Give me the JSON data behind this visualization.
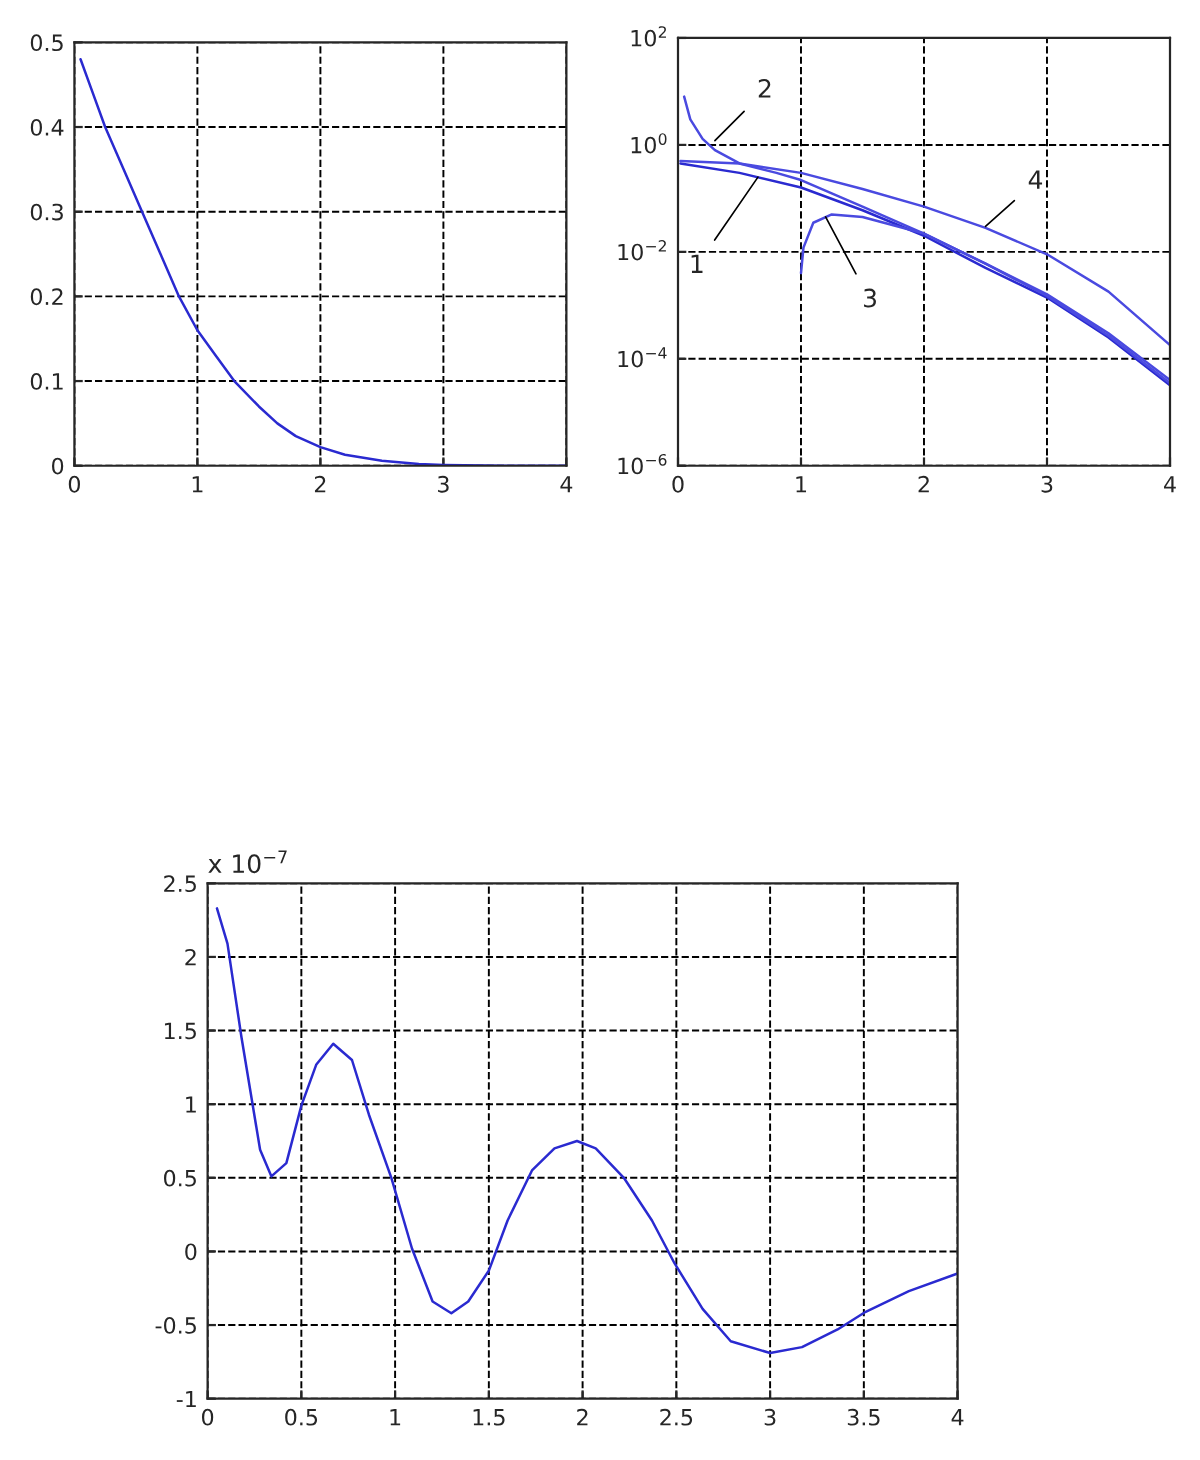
{
  "chart_data": [
    {
      "type": "line",
      "x": [
        0.05,
        0.15,
        0.25,
        0.4,
        0.55,
        0.7,
        0.85,
        1.0,
        1.15,
        1.3,
        1.5,
        1.65,
        1.8,
        2.0,
        2.2,
        2.5,
        2.8,
        3.0,
        3.5,
        4.0
      ],
      "series": [
        {
          "color": "#2a2ad0",
          "values": [
            0.48,
            0.44,
            0.4,
            0.35,
            0.3,
            0.25,
            0.2,
            0.16,
            0.13,
            0.1,
            0.07,
            0.05,
            0.035,
            0.022,
            0.013,
            0.006,
            0.002,
            0.001,
            0,
            0
          ]
        }
      ],
      "xlim": [
        0,
        4
      ],
      "ylim": [
        0,
        0.5
      ],
      "xticks": [
        0,
        1,
        2,
        3,
        4
      ],
      "yticks": [
        0,
        0.1,
        0.2,
        0.3,
        0.4,
        0.5
      ],
      "grid": true
    },
    {
      "type": "line",
      "log": "y",
      "series": [
        {
          "color": "#2a2ad0",
          "x": [
            0.02,
            0.5,
            1.0,
            1.5,
            2.0,
            2.5,
            3.0,
            3.5,
            4.0
          ],
          "values": [
            0.45,
            0.3,
            0.16,
            0.06,
            0.02,
            0.005,
            0.0014,
            0.00025,
            3.2e-05
          ]
        },
        {
          "color": "#4a4ae0",
          "x": [
            0.05,
            0.1,
            0.2,
            0.3,
            0.5,
            0.8,
            1.0,
            1.5,
            2.0,
            2.5,
            3.0,
            3.5,
            4.0
          ],
          "values": [
            8,
            3,
            1.3,
            0.8,
            0.45,
            0.3,
            0.22,
            0.07,
            0.022,
            0.006,
            0.0016,
            0.0003,
            4e-05
          ]
        },
        {
          "color": "#4a4ae0",
          "x": [
            1.0,
            1.02,
            1.1,
            1.25,
            1.5,
            2.0,
            2.5,
            3.0,
            3.5,
            4.0
          ],
          "values": [
            0.004,
            0.012,
            0.035,
            0.05,
            0.045,
            0.022,
            0.006,
            0.0015,
            0.00027,
            3.5e-05
          ]
        },
        {
          "color": "#4a4ae0",
          "x": [
            0.02,
            0.5,
            1.0,
            1.5,
            2.0,
            2.5,
            3.0,
            3.5,
            4.0
          ],
          "values": [
            0.5,
            0.45,
            0.3,
            0.15,
            0.07,
            0.028,
            0.009,
            0.0018,
            0.00018
          ]
        }
      ],
      "annotations": [
        {
          "text": "1",
          "x": 0.65,
          "y": 0.25
        },
        {
          "text": "2",
          "x": 0.3,
          "y": 1.2
        },
        {
          "text": "3",
          "x": 1.2,
          "y": 0.045
        },
        {
          "text": "4",
          "x": 2.5,
          "y": 0.03
        }
      ],
      "xlim": [
        0,
        4
      ],
      "ylim": [
        1e-06,
        100
      ],
      "xticks": [
        0,
        1,
        2,
        3,
        4
      ],
      "yticks": [
        {
          "value": 1e-06,
          "label": "10$^{−6}$"
        },
        {
          "value": 0.0001,
          "label": "10$^{−4}$"
        },
        {
          "value": 0.01,
          "label": "10$^{−2}$"
        },
        {
          "value": 1,
          "label": "10$^{0}$"
        },
        {
          "value": 100,
          "label": "10$^{2}$"
        }
      ],
      "grid": true
    },
    {
      "type": "line",
      "x": [
        0.05,
        0.106,
        0.18,
        0.28,
        0.34,
        0.42,
        0.5,
        0.58,
        0.67,
        0.77,
        0.86,
        0.98,
        1.09,
        1.2,
        1.3,
        1.39,
        1.5,
        1.6,
        1.73,
        1.85,
        1.97,
        2.07,
        2.22,
        2.37,
        2.49,
        2.64,
        2.79,
        3.0,
        3.17,
        3.36,
        3.51,
        3.74,
        4.0
      ],
      "series": [
        {
          "color": "#2a2ad0",
          "values": [
            2.33,
            2.09,
            1.46,
            0.69,
            0.51,
            0.6,
            0.99,
            1.27,
            1.41,
            1.3,
            0.93,
            0.5,
            0.02,
            -0.34,
            -0.42,
            -0.34,
            -0.13,
            0.21,
            0.55,
            0.7,
            0.75,
            0.7,
            0.5,
            0.21,
            -0.08,
            -0.39,
            -0.61,
            -0.69,
            -0.65,
            -0.53,
            -0.41,
            -0.27,
            -0.15
          ]
        }
      ],
      "annotations": [
        "x 10$^{−7}$"
      ],
      "xlim": [
        0,
        4
      ],
      "ylim": [
        -1,
        2.5
      ],
      "xticks": [
        0,
        0.5,
        1,
        1.5,
        2,
        2.5,
        3,
        3.5,
        4
      ],
      "yticks": [
        -1,
        -0.5,
        0,
        0.5,
        1,
        1.5,
        2,
        2.5
      ],
      "grid": true
    }
  ]
}
